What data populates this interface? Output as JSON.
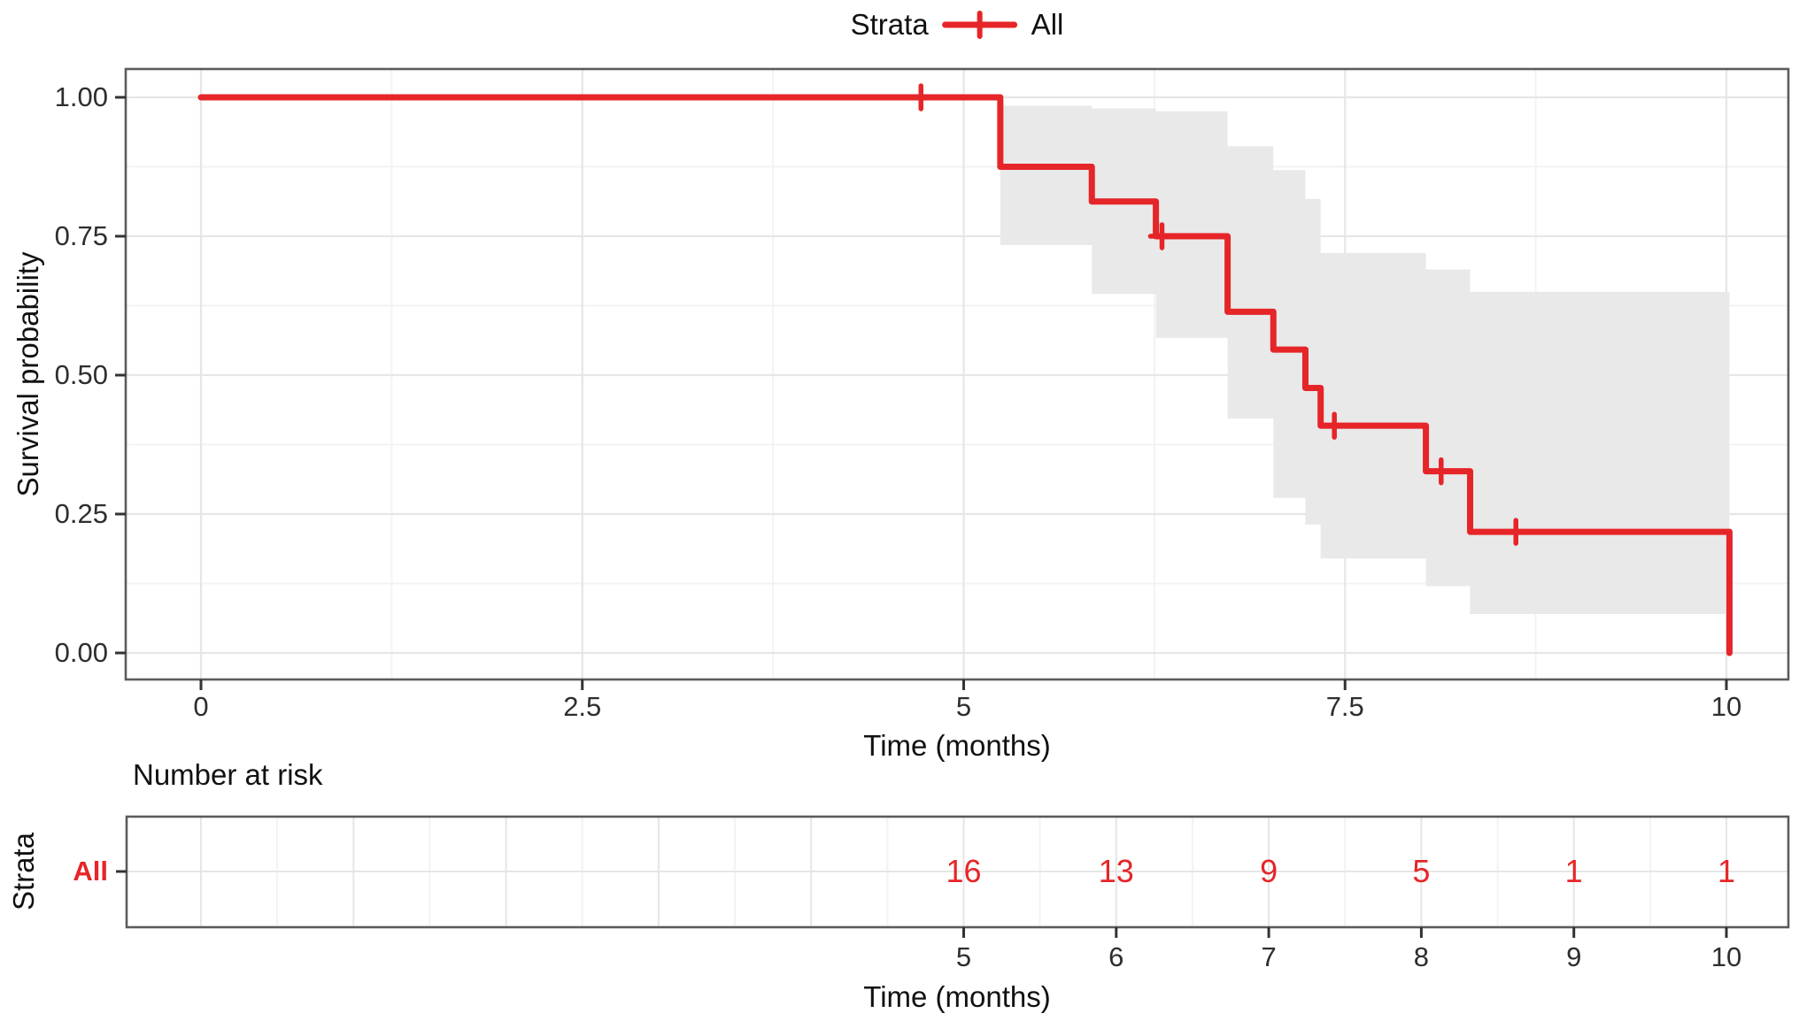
{
  "colors": {
    "stratum_red": "#e62528",
    "ci_band_gray": "#e9e9e9",
    "grid_major": "#e6e6e6",
    "grid_minor": "#f3f3f3",
    "panel_border": "#5b5b5b",
    "tick_mark": "#333333"
  },
  "legend": {
    "title": "Strata",
    "items": [
      {
        "label": "All",
        "color": "#e62528",
        "symbol": "line-plus"
      }
    ]
  },
  "main_plot": {
    "y_axis": {
      "title": "Survival probability",
      "ticks": [
        {
          "v": 0.0,
          "label": "0.00"
        },
        {
          "v": 0.25,
          "label": "0.25"
        },
        {
          "v": 0.5,
          "label": "0.50"
        },
        {
          "v": 0.75,
          "label": "0.75"
        },
        {
          "v": 1.0,
          "label": "1.00"
        }
      ]
    },
    "x_axis": {
      "title": "Time (months)",
      "ticks": [
        {
          "v": 0,
          "label": "0"
        },
        {
          "v": 2.5,
          "label": "2.5"
        },
        {
          "v": 5,
          "label": "5"
        },
        {
          "v": 7.5,
          "label": "7.5"
        },
        {
          "v": 10,
          "label": "10"
        }
      ]
    }
  },
  "risk_table": {
    "header": "Number at risk",
    "y_axis_title": "Strata",
    "row_label": "All",
    "x_axis": {
      "title": "Time (months)",
      "ticks": [
        {
          "v": 5,
          "label": "5"
        },
        {
          "v": 6,
          "label": "6"
        },
        {
          "v": 7,
          "label": "7"
        },
        {
          "v": 8,
          "label": "8"
        },
        {
          "v": 9,
          "label": "9"
        },
        {
          "v": 10,
          "label": "10"
        }
      ]
    }
  },
  "chart_data": {
    "type": "line",
    "subtype": "kaplan_meier_step",
    "title": "",
    "xlabel": "Time (months)",
    "ylabel": "Survival probability",
    "xlim": [
      -0.5,
      10.4
    ],
    "ylim": [
      0,
      1
    ],
    "grid": true,
    "legend_position": "top",
    "series": [
      {
        "name": "All",
        "color": "#e62528",
        "steps": [
          {
            "t": 0.0,
            "s": 1.0
          },
          {
            "t": 5.24,
            "s": 0.875
          },
          {
            "t": 5.84,
            "s": 0.8125
          },
          {
            "t": 6.26,
            "s": 0.75
          },
          {
            "t": 6.73,
            "s": 0.614
          },
          {
            "t": 7.03,
            "s": 0.546
          },
          {
            "t": 7.24,
            "s": 0.477
          },
          {
            "t": 7.34,
            "s": 0.409
          },
          {
            "t": 8.03,
            "s": 0.327
          },
          {
            "t": 8.32,
            "s": 0.218
          },
          {
            "t": 10.02,
            "s": 0.0
          }
        ],
        "censor_marks": [
          {
            "t": 4.72,
            "s": 1.0
          },
          {
            "t": 6.3,
            "s": 0.75
          },
          {
            "t": 7.43,
            "s": 0.409
          },
          {
            "t": 8.13,
            "s": 0.327
          },
          {
            "t": 8.62,
            "s": 0.218
          }
        ],
        "ci_band": [
          {
            "t0": 5.24,
            "t1": 5.84,
            "lo": 0.734,
            "hi": 0.985
          },
          {
            "t0": 5.84,
            "t1": 6.26,
            "lo": 0.646,
            "hi": 0.98
          },
          {
            "t0": 6.26,
            "t1": 6.73,
            "lo": 0.567,
            "hi": 0.975
          },
          {
            "t0": 6.73,
            "t1": 7.03,
            "lo": 0.422,
            "hi": 0.912
          },
          {
            "t0": 7.03,
            "t1": 7.24,
            "lo": 0.279,
            "hi": 0.869
          },
          {
            "t0": 7.24,
            "t1": 7.34,
            "lo": 0.231,
            "hi": 0.817
          },
          {
            "t0": 7.34,
            "t1": 8.03,
            "lo": 0.17,
            "hi": 0.72
          },
          {
            "t0": 8.03,
            "t1": 8.32,
            "lo": 0.12,
            "hi": 0.69
          },
          {
            "t0": 8.32,
            "t1": 10.02,
            "lo": 0.07,
            "hi": 0.65
          }
        ]
      }
    ],
    "risk_table": {
      "strata": "All",
      "times": [
        5,
        6,
        7,
        8,
        9,
        10
      ],
      "at_risk": [
        16,
        13,
        9,
        5,
        1,
        1
      ]
    }
  }
}
